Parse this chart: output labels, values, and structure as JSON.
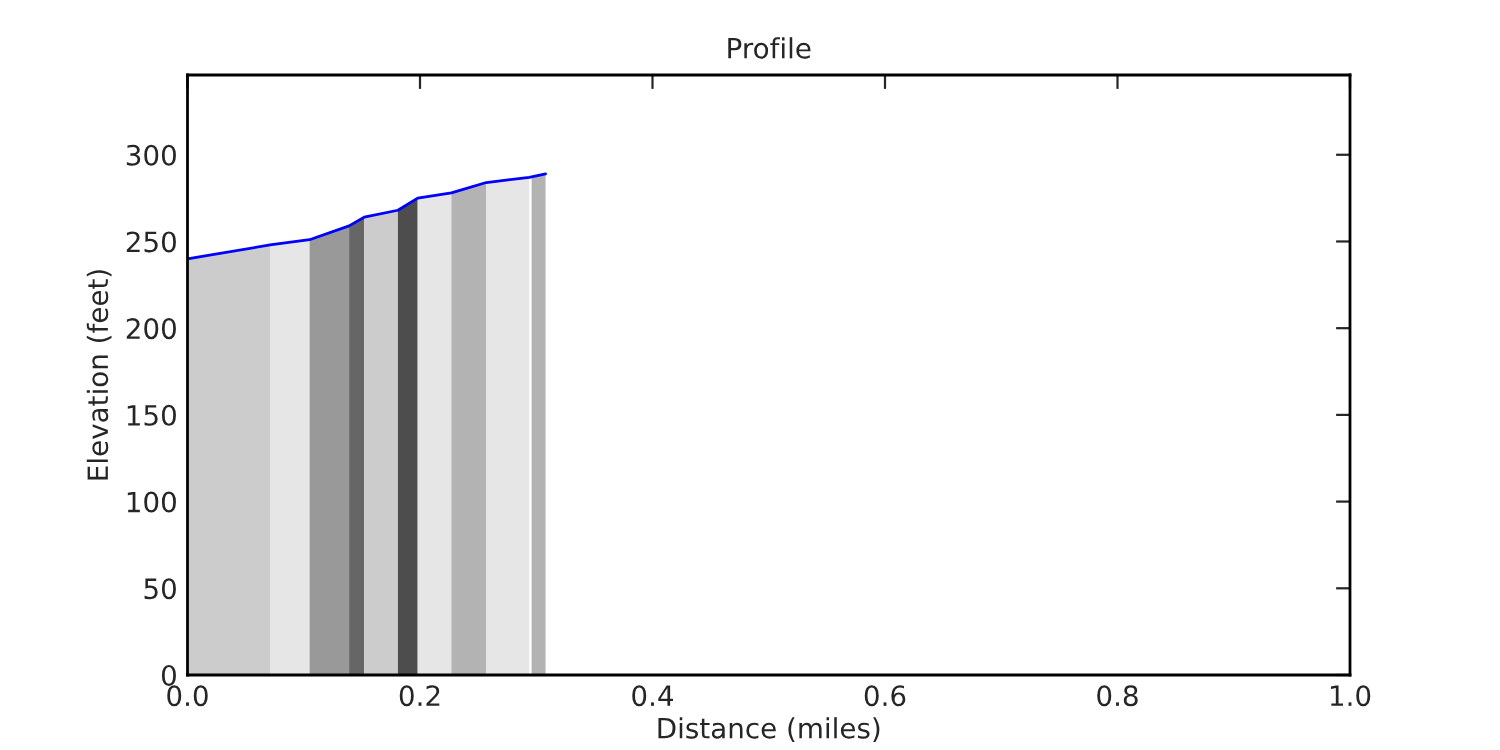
{
  "chart_data": {
    "type": "area",
    "title": "Profile",
    "xlabel": "Distance (miles)",
    "ylabel": "Elevation (feet)",
    "xlim": [
      0,
      1
    ],
    "xticks": [
      {
        "value": 0,
        "label": "0.0"
      },
      0.2,
      0.4,
      0.6,
      0.8,
      {
        "value": 1,
        "label": "1.0"
      }
    ],
    "ylim": [
      0,
      346
    ],
    "yticks": [
      0,
      50,
      100,
      150,
      200,
      250,
      300
    ],
    "grid": false,
    "legend": false,
    "series": [
      {
        "color": "#cccccc",
        "x": [
          0,
          0.071
        ],
        "values": [
          240,
          248
        ]
      },
      {
        "color": "#e6e6e6",
        "x": [
          0.071,
          0.105
        ],
        "values": [
          248,
          251
        ]
      },
      {
        "color": "#999999",
        "x": [
          0.105,
          0.139
        ],
        "values": [
          251,
          259
        ]
      },
      {
        "color": "#666666",
        "x": [
          0.139,
          0.152
        ],
        "values": [
          259,
          264
        ]
      },
      {
        "color": "#cccccc",
        "x": [
          0.152,
          0.181
        ],
        "values": [
          264,
          268
        ]
      },
      {
        "color": "#4d4d4d",
        "x": [
          0.181,
          0.198
        ],
        "values": [
          268,
          275
        ]
      },
      {
        "color": "#e6e6e6",
        "x": [
          0.198,
          0.227
        ],
        "values": [
          275,
          278
        ]
      },
      {
        "color": "#b3b3b3",
        "x": [
          0.227,
          0.257
        ],
        "values": [
          278,
          284
        ]
      },
      {
        "color": "#e6e6e6",
        "x": [
          0.257,
          0.294
        ],
        "values": [
          284,
          287
        ]
      },
      {
        "color": "#b3b3b3",
        "x": [
          0.296,
          0.308
        ],
        "values": [
          287,
          289
        ]
      },
      {
        "type": "line",
        "color": "#0000ff",
        "x": [
          0,
          0.071,
          0.105,
          0.139,
          0.152,
          0.181,
          0.198,
          0.227,
          0.257,
          0.294,
          0.308
        ],
        "values": [
          240,
          248,
          251,
          259,
          264,
          268,
          275,
          278,
          284,
          287,
          289
        ]
      }
    ]
  }
}
